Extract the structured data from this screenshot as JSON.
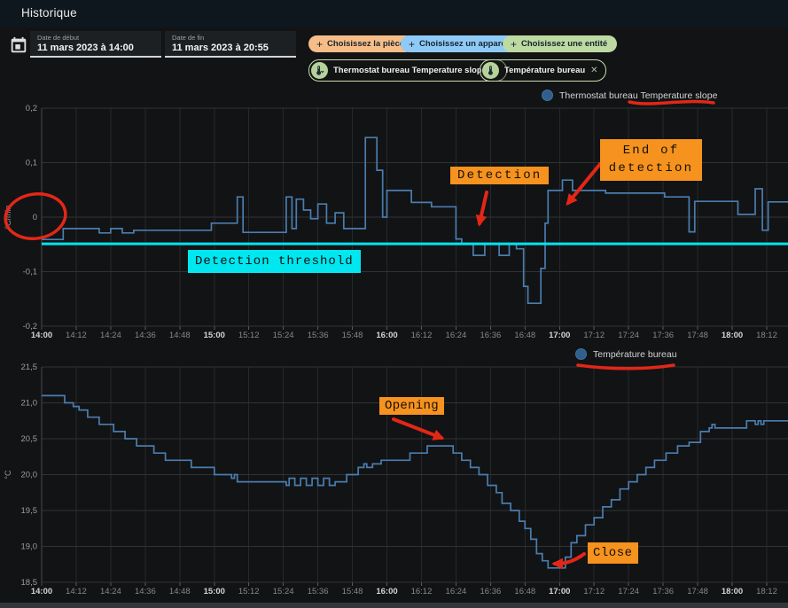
{
  "header": {
    "title": "Historique"
  },
  "toolbar": {
    "date_start": {
      "label": "Date de début",
      "value": "11 mars 2023 à 14:00"
    },
    "date_end": {
      "label": "Date de fin",
      "value": "11 mars 2023 à 20:55"
    },
    "filter_buttons": [
      {
        "label": "Choisissez la pièce",
        "plus": "+",
        "color": "#f7bd88"
      },
      {
        "label": "Choisissez un appareil",
        "plus": "+",
        "color": "#8fcaf7"
      },
      {
        "label": "Choisissez une entité",
        "plus": "+",
        "color": "#bcdaa2"
      }
    ],
    "entity_chips": [
      {
        "label": "Thermostat bureau Temperature slope",
        "close": "✕",
        "icon": "thermometer-chevron-icon"
      },
      {
        "label": "Température bureau",
        "close": "✕",
        "icon": "thermometer-icon"
      }
    ]
  },
  "colors": {
    "series_blue": "#4a7dae",
    "threshold_cyan": "#00e5f0",
    "annotation_orange": "#f6921e",
    "annotation_red": "#e32717",
    "header_bg": "#0e171d",
    "page_bg": "#121315"
  },
  "chart_data": [
    {
      "type": "line",
      "step": true,
      "legend": "Thermostat bureau Temperature slope",
      "ylabel": "°C/min",
      "ylim": [
        -0.2,
        0.2
      ],
      "ytick_labels": [
        "0,2",
        "0,1",
        "0",
        "-0,1",
        "-0,2"
      ],
      "ytick_values": [
        0.2,
        0.1,
        0,
        -0.1,
        -0.2
      ],
      "xtick_labels": [
        "14:00",
        "14:12",
        "14:24",
        "14:36",
        "14:48",
        "15:00",
        "15:12",
        "15:24",
        "15:36",
        "15:48",
        "16:00",
        "16:12",
        "16:24",
        "16:36",
        "16:48",
        "17:00",
        "17:12",
        "17:24",
        "17:36",
        "17:48",
        "18:00",
        "18:12"
      ],
      "x_unit": "minutes after 14:00, 11 mars 2023",
      "grid": true,
      "legend_position": "top-right",
      "threshold_value": -0.049,
      "points": [
        [
          0,
          -0.041
        ],
        [
          7.5,
          -0.021
        ],
        [
          20,
          -0.029
        ],
        [
          24,
          -0.021
        ],
        [
          28,
          -0.029
        ],
        [
          32,
          -0.024
        ],
        [
          59,
          -0.011
        ],
        [
          68,
          0.037
        ],
        [
          70,
          -0.028
        ],
        [
          85,
          0.037
        ],
        [
          87,
          -0.021
        ],
        [
          88.5,
          0.033
        ],
        [
          91,
          0.013
        ],
        [
          93.5,
          -0.003
        ],
        [
          96,
          0.024
        ],
        [
          99,
          -0.011
        ],
        [
          102,
          0.008
        ],
        [
          105,
          -0.021
        ],
        [
          112.5,
          0.146
        ],
        [
          116.5,
          0.086
        ],
        [
          118.5,
          0.0
        ],
        [
          120,
          0.049
        ],
        [
          128.5,
          0.027
        ],
        [
          135.5,
          0.019
        ],
        [
          144,
          -0.04
        ],
        [
          146,
          -0.049
        ],
        [
          150,
          -0.07
        ],
        [
          154,
          -0.049
        ],
        [
          159,
          -0.07
        ],
        [
          162.5,
          -0.049
        ],
        [
          165,
          -0.058
        ],
        [
          167.5,
          -0.127
        ],
        [
          169,
          -0.158
        ],
        [
          173.5,
          -0.094
        ],
        [
          175,
          -0.011
        ],
        [
          176,
          0.049
        ],
        [
          181,
          0.068
        ],
        [
          184.5,
          0.049
        ],
        [
          196,
          0.044
        ],
        [
          216.5,
          0.037
        ],
        [
          225,
          -0.027
        ],
        [
          227,
          0.029
        ],
        [
          242,
          0.005
        ],
        [
          248,
          0.052
        ],
        [
          250.5,
          -0.024
        ],
        [
          252.5,
          0.028
        ]
      ],
      "annotations": [
        {
          "text": "Detection"
        },
        {
          "text": "End of detection"
        },
        {
          "text": "Detection threshold"
        }
      ]
    },
    {
      "type": "line",
      "step": true,
      "legend": "Température bureau",
      "ylabel": "°C",
      "ylim": [
        18.5,
        21.5
      ],
      "ytick_labels": [
        "21,5",
        "21,0",
        "20,5",
        "20,0",
        "19,5",
        "19,0",
        "18,5"
      ],
      "ytick_values": [
        21.5,
        21.0,
        20.5,
        20.0,
        19.5,
        19.0,
        18.5
      ],
      "xtick_labels": [
        "14:00",
        "14:12",
        "14:24",
        "14:36",
        "14:48",
        "15:00",
        "15:12",
        "15:24",
        "15:36",
        "15:48",
        "16:00",
        "16:12",
        "16:24",
        "16:36",
        "16:48",
        "17:00",
        "17:12",
        "17:24",
        "17:36",
        "17:48",
        "18:00",
        "18:12"
      ],
      "x_unit": "minutes after 14:00, 11 mars 2023",
      "grid": true,
      "legend_position": "top-right",
      "points": [
        [
          0,
          21.1
        ],
        [
          8,
          21.0
        ],
        [
          11,
          20.95
        ],
        [
          13,
          20.9
        ],
        [
          16,
          20.8
        ],
        [
          20,
          20.7
        ],
        [
          25,
          20.6
        ],
        [
          29,
          20.5
        ],
        [
          33,
          20.4
        ],
        [
          39,
          20.3
        ],
        [
          43,
          20.2
        ],
        [
          52,
          20.1
        ],
        [
          60,
          20.0
        ],
        [
          66,
          19.95
        ],
        [
          67,
          20.0
        ],
        [
          68,
          19.9
        ],
        [
          85,
          19.85
        ],
        [
          86,
          19.95
        ],
        [
          88,
          19.85
        ],
        [
          90,
          19.95
        ],
        [
          92,
          19.85
        ],
        [
          94,
          19.95
        ],
        [
          96,
          19.85
        ],
        [
          98,
          19.95
        ],
        [
          100,
          19.85
        ],
        [
          102,
          19.9
        ],
        [
          106,
          20.0
        ],
        [
          110,
          20.1
        ],
        [
          112,
          20.15
        ],
        [
          113,
          20.1
        ],
        [
          115,
          20.15
        ],
        [
          118,
          20.2
        ],
        [
          128,
          20.3
        ],
        [
          134,
          20.4
        ],
        [
          143,
          20.3
        ],
        [
          146,
          20.2
        ],
        [
          149,
          20.1
        ],
        [
          152,
          20.0
        ],
        [
          155,
          19.85
        ],
        [
          158,
          19.75
        ],
        [
          160,
          19.6
        ],
        [
          163,
          19.5
        ],
        [
          166,
          19.35
        ],
        [
          168,
          19.25
        ],
        [
          170,
          19.1
        ],
        [
          172,
          18.9
        ],
        [
          174,
          18.8
        ],
        [
          176,
          18.7
        ],
        [
          182,
          18.85
        ],
        [
          184,
          19.05
        ],
        [
          186,
          19.15
        ],
        [
          189,
          19.3
        ],
        [
          192,
          19.4
        ],
        [
          195,
          19.55
        ],
        [
          198,
          19.65
        ],
        [
          201,
          19.8
        ],
        [
          204,
          19.9
        ],
        [
          207,
          20.0
        ],
        [
          210,
          20.1
        ],
        [
          213,
          20.2
        ],
        [
          217,
          20.3
        ],
        [
          221,
          20.4
        ],
        [
          225,
          20.45
        ],
        [
          229,
          20.6
        ],
        [
          232,
          20.65
        ],
        [
          233,
          20.7
        ],
        [
          234,
          20.65
        ],
        [
          245,
          20.75
        ],
        [
          248,
          20.7
        ],
        [
          249,
          20.75
        ],
        [
          250,
          20.7
        ],
        [
          251,
          20.75
        ]
      ],
      "annotations": [
        {
          "text": "Opening"
        },
        {
          "text": "Close"
        }
      ]
    }
  ]
}
